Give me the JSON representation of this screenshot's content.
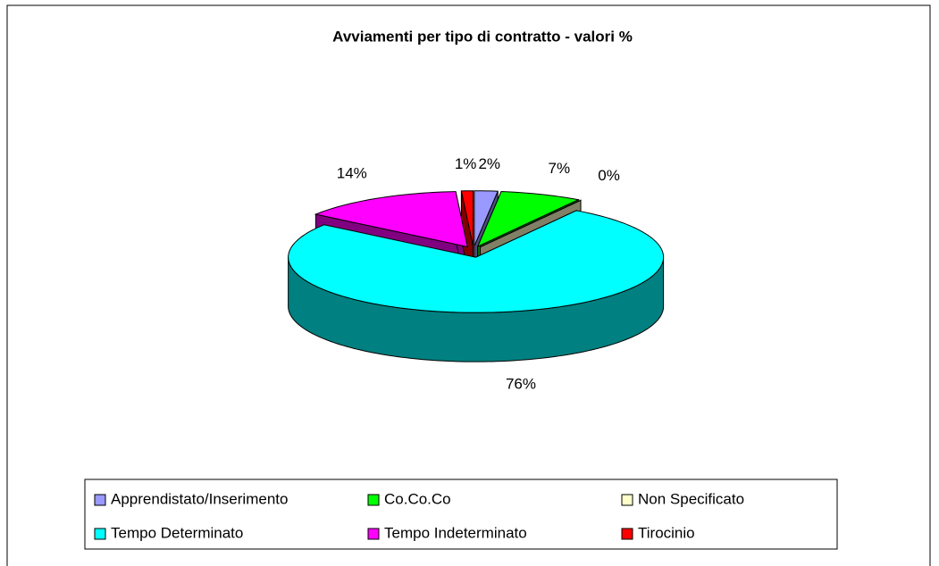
{
  "chart_data": {
    "type": "pie3d",
    "title": "Avviamenti per tipo di contratto - valori %",
    "categories": [
      "Apprendistato/Inserimento",
      "Co.Co.Co",
      "Non Specificato",
      "Tempo Determinato",
      "Tempo Indeterminato",
      "Tirocinio"
    ],
    "values": [
      2,
      7,
      0,
      76,
      14,
      1
    ],
    "value_labels": [
      "2%",
      "7%",
      "0%",
      "76%",
      "14%",
      "1%"
    ],
    "colors": [
      "#9999ff",
      "#00ff00",
      "#ffffcc",
      "#00ffff",
      "#ff00ff",
      "#ff0000"
    ],
    "legend": "bottom"
  }
}
